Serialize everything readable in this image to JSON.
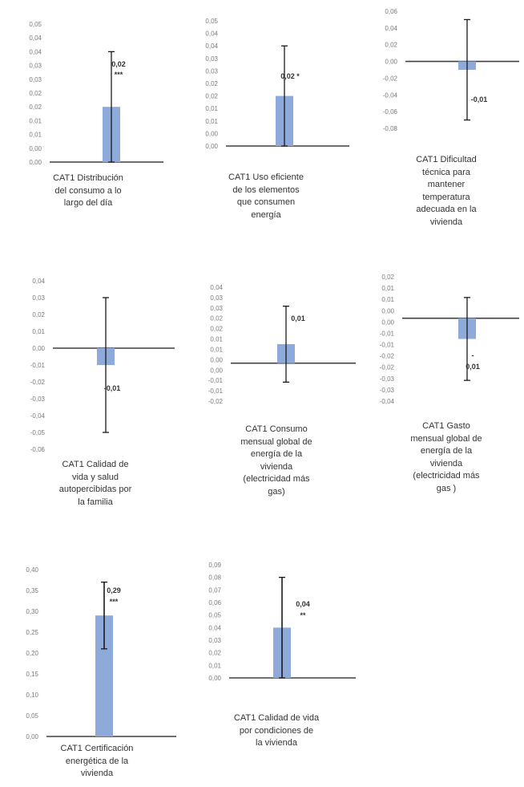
{
  "colors": {
    "bar": "#8eaadb",
    "axis": "#404040",
    "error_bar": "#1a1a1a",
    "tick_text": "#7a7a7a",
    "label_text": "#333333"
  },
  "chart_data": [
    {
      "type": "bar",
      "category": "CAT1 Distribución del consumo a lo largo del día",
      "caption_lines": [
        "CAT1 Distribución",
        "del consumo a lo",
        "largo del día"
      ],
      "value": 0.02,
      "error_low": 0.0,
      "error_high": 0.04,
      "data_label": "0,02",
      "significance": "***",
      "ylim": [
        0,
        0.05
      ],
      "yticks": [
        "0,05",
        "0,04",
        "0,04",
        "0,03",
        "0,03",
        "0,02",
        "0,02",
        "0,01",
        "0,01",
        "0,00",
        "0,00"
      ]
    },
    {
      "type": "bar",
      "category": "CAT1 Uso eficiente de los elementos que consumen energía",
      "caption_lines": [
        "CAT1 Uso eficiente",
        "de los elementos",
        "que consumen",
        "energía"
      ],
      "value": 0.02,
      "error_low": 0.0,
      "error_high": 0.04,
      "data_label": "0,02 *",
      "significance": "",
      "ylim": [
        0,
        0.05
      ],
      "yticks": [
        "0,05",
        "0,04",
        "0,04",
        "0,03",
        "0,03",
        "0,02",
        "0,02",
        "0,01",
        "0,01",
        "0,00",
        "0,00"
      ]
    },
    {
      "type": "bar",
      "category": "CAT1 Dificultad técnica para mantener temperatura adecuada en la vivienda",
      "caption_lines": [
        "CAT1 Dificultad",
        "técnica para",
        "mantener",
        "temperatura",
        "adecuada en la",
        "vivienda"
      ],
      "value": -0.01,
      "error_low": -0.07,
      "error_high": 0.05,
      "data_label": "-0,01",
      "significance": "",
      "ylim": [
        -0.08,
        0.06
      ],
      "yticks": [
        "0,06",
        "0,04",
        "0,02",
        "0,00",
        "-0,02",
        "-0,04",
        "-0,06",
        "-0,08"
      ]
    },
    {
      "type": "bar",
      "category": "CAT1 Calidad de vida y salud autopercibidas por la familia",
      "caption_lines": [
        "CAT1 Calidad de",
        "vida y salud",
        "autopercibidas por",
        "la familia"
      ],
      "value": -0.01,
      "error_low": -0.05,
      "error_high": 0.03,
      "data_label": "-0,01",
      "significance": "",
      "ylim": [
        -0.06,
        0.04
      ],
      "yticks": [
        "0,04",
        "0,03",
        "0,02",
        "0,01",
        "0,00",
        "-0,01",
        "-0,02",
        "-0,03",
        "-0,04",
        "-0,05",
        "-0,06"
      ]
    },
    {
      "type": "bar",
      "category": "CAT1 Consumo mensual global de energía de la vivienda (electricidad más gas)",
      "caption_lines": [
        "CAT1 Consumo",
        "mensual global de",
        "energía de la",
        "vivienda",
        "(electricidad más",
        "gas)"
      ],
      "value": 0.01,
      "error_low": -0.01,
      "error_high": 0.03,
      "data_label": "0,01",
      "significance": "",
      "ylim": [
        -0.02,
        0.04
      ],
      "yticks": [
        "0,04",
        "0,03",
        "0,03",
        "0,02",
        "0,02",
        "0,01",
        "0,01",
        "0,00",
        "0,00",
        "-0,01",
        "-0,01",
        "-0,02"
      ]
    },
    {
      "type": "bar",
      "category": "CAT1 Gasto mensual global de energía de la vivienda (electricidad más gas)",
      "caption_lines": [
        "CAT1 Gasto",
        "mensual global de",
        "energía de la",
        "vivienda",
        "(electricidad más",
        "gas )"
      ],
      "value": -0.01,
      "error_low": -0.03,
      "error_high": 0.01,
      "data_label": "-\n0,01",
      "significance": "",
      "ylim": [
        -0.04,
        0.02
      ],
      "yticks": [
        "0,02",
        "0,01",
        "0,01",
        "0,00",
        "0,00",
        "-0,01",
        "-0,01",
        "-0,02",
        "-0,02",
        "-0,03",
        "-0,03",
        "-0,04"
      ]
    },
    {
      "type": "bar",
      "category": "CAT1 Certificación energética de la vivienda",
      "caption_lines": [
        "CAT1 Certificación",
        "energética de la",
        "vivienda"
      ],
      "value": 0.29,
      "error_low": 0.21,
      "error_high": 0.37,
      "data_label": "0,29",
      "significance": "***",
      "ylim": [
        0,
        0.4
      ],
      "yticks": [
        "0,40",
        "0,35",
        "0,30",
        "0,25",
        "0,20",
        "0,15",
        "0,10",
        "0,05",
        "0,00"
      ]
    },
    {
      "type": "bar",
      "category": "CAT1 Calidad de vida por condiciones de la vivienda",
      "caption_lines": [
        "CAT1 Calidad de vida",
        "por condiciones de",
        "la vivienda"
      ],
      "value": 0.04,
      "error_low": 0.0,
      "error_high": 0.08,
      "data_label": "0,04",
      "significance": "**",
      "ylim": [
        0,
        0.09
      ],
      "yticks": [
        "0,09",
        "0,08",
        "0,07",
        "0,06",
        "0,05",
        "0,04",
        "0,03",
        "0,02",
        "0,01",
        "0,00"
      ]
    }
  ]
}
